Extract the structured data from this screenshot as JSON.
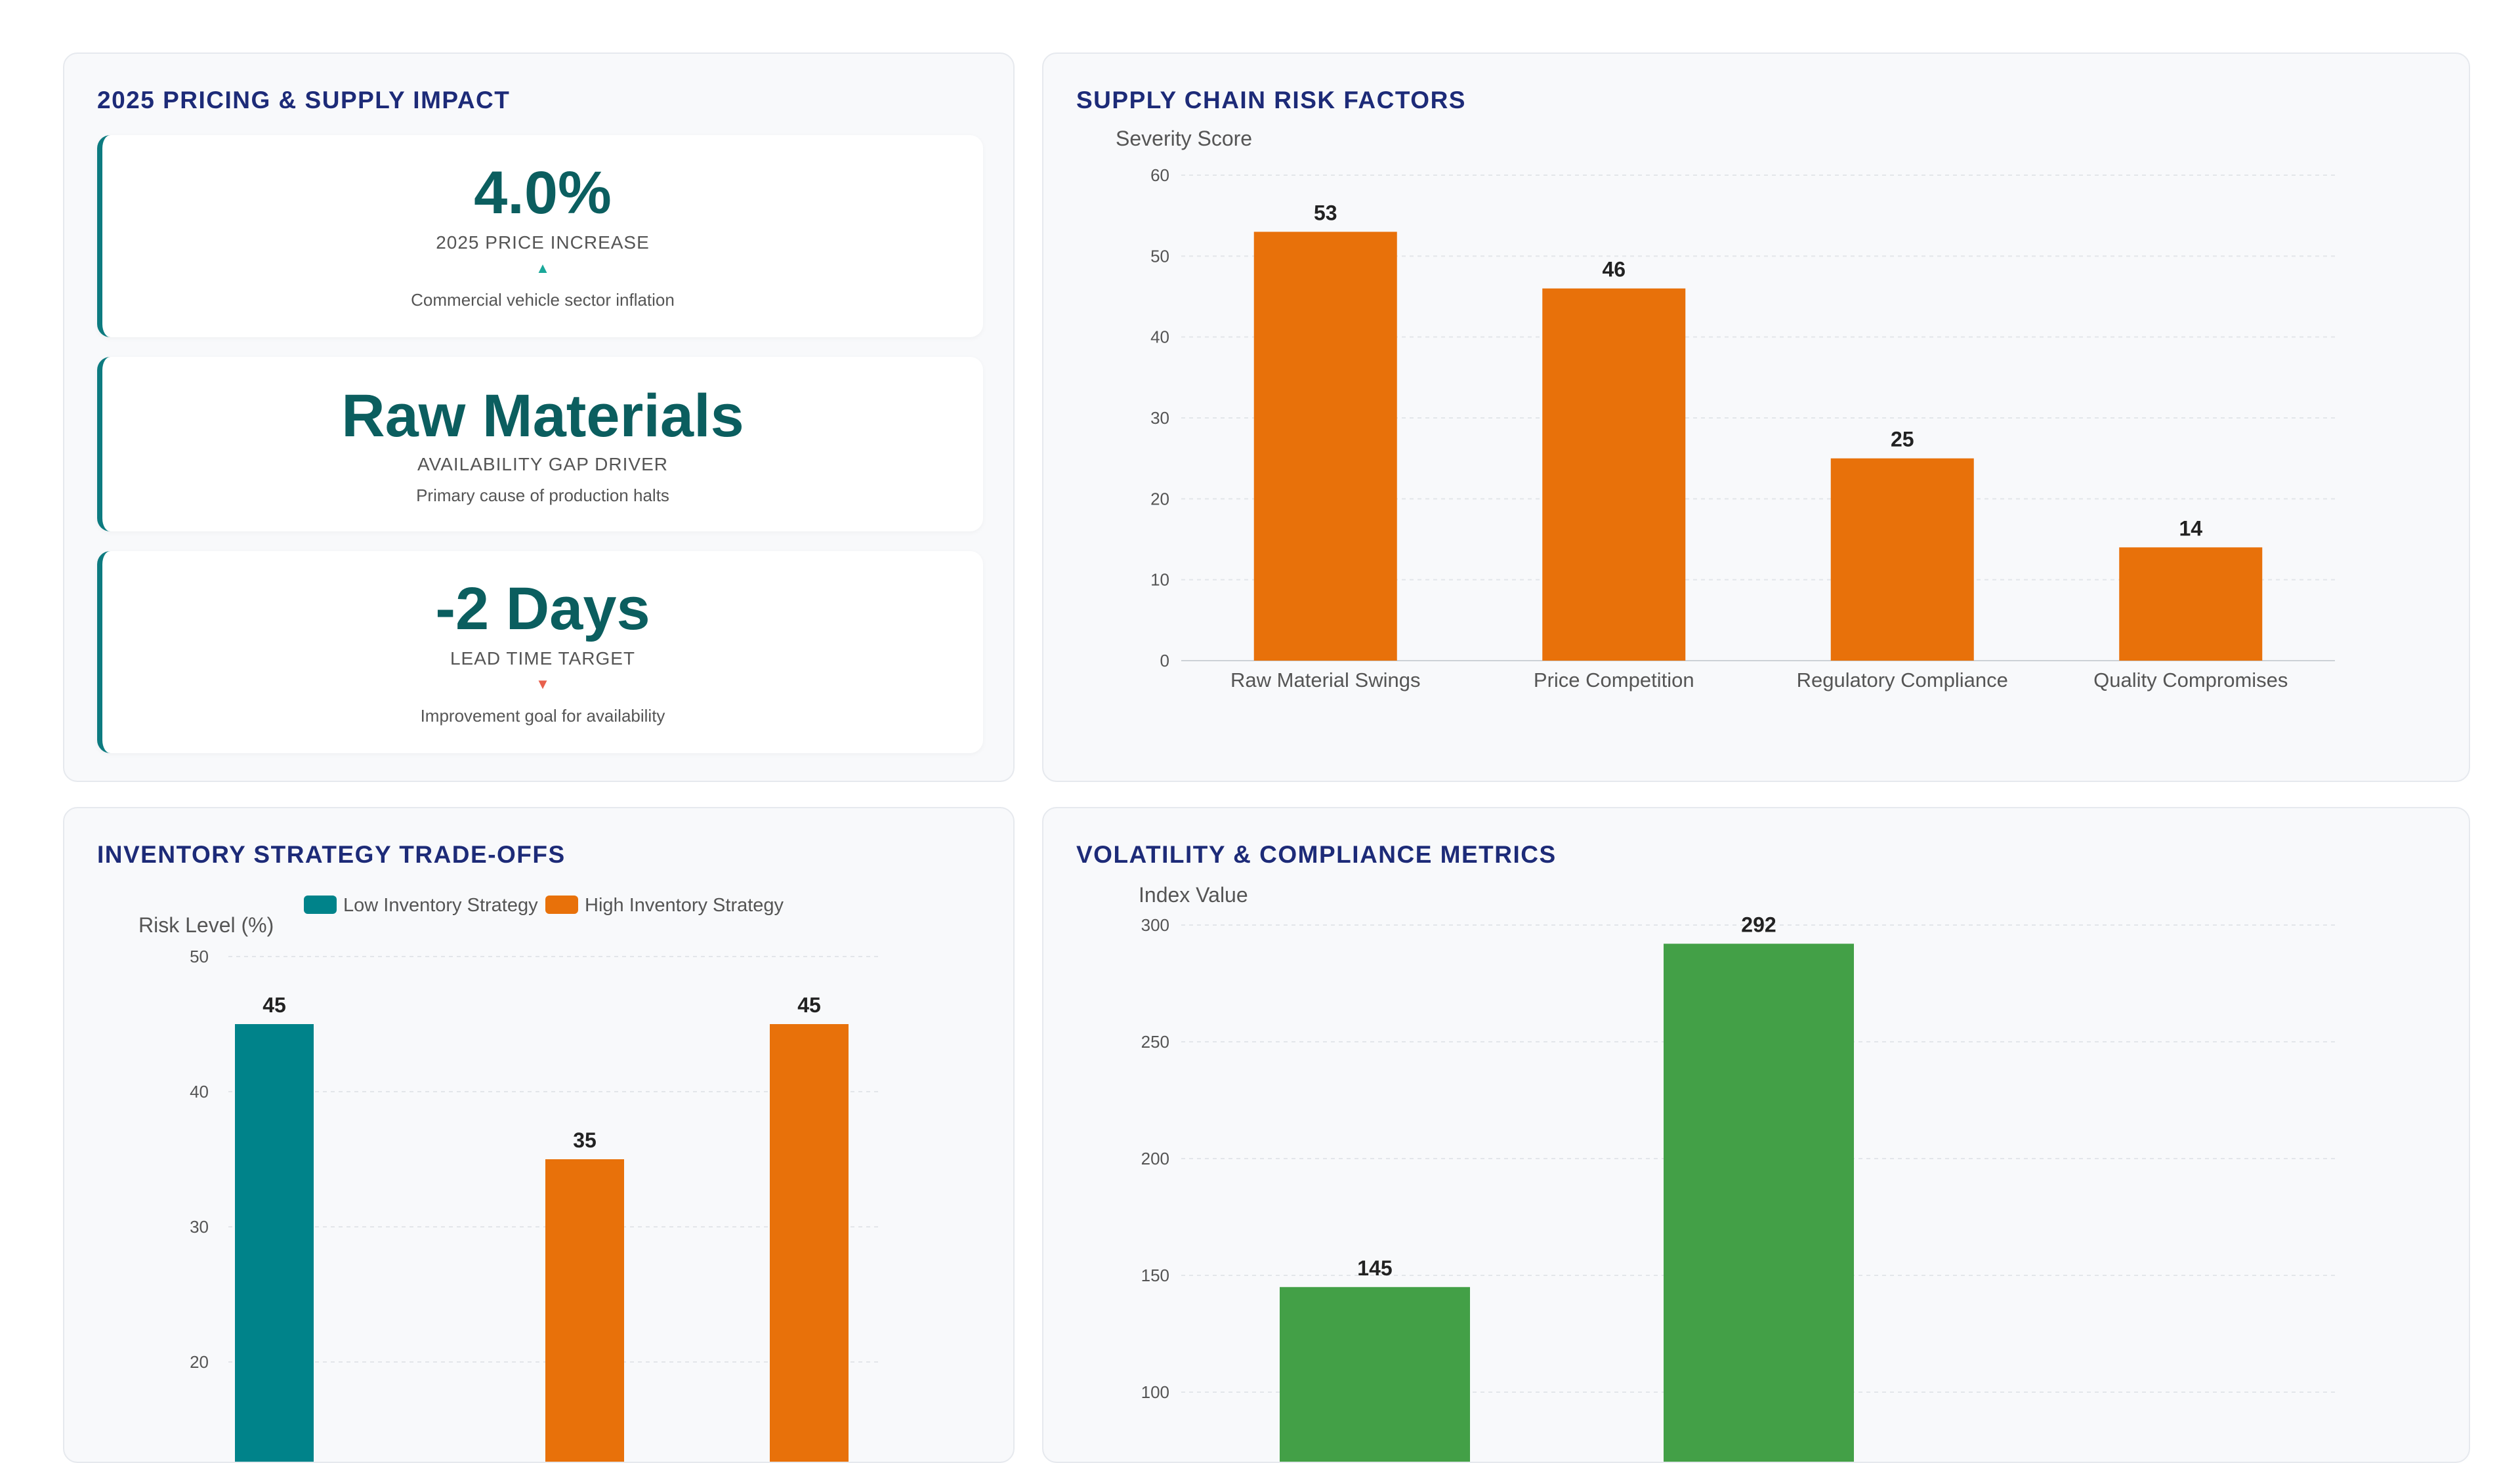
{
  "panels": {
    "pricing": {
      "title": "2025 PRICING & SUPPLY IMPACT",
      "cards": [
        {
          "value": "4.0%",
          "label": "2025 PRICE INCREASE",
          "arrow": "▲",
          "description": "Commercial vehicle sector inflation"
        },
        {
          "value": "Raw Materials",
          "label": "AVAILABILITY GAP DRIVER",
          "description": "Primary cause of production halts"
        },
        {
          "value": "-2 Days",
          "label": "LEAD TIME TARGET",
          "arrow": "▼",
          "description": "Improvement goal for availability"
        }
      ]
    },
    "risk": {
      "title": "SUPPLY CHAIN RISK FACTORS"
    },
    "inventory": {
      "title": "INVENTORY STRATEGY TRADE-OFFS"
    },
    "volatility": {
      "title": "VOLATILITY & COMPLIANCE METRICS"
    }
  },
  "colors": {
    "teal": "#00838a",
    "orange": "#e8710a",
    "green": "#43a047",
    "title": "#1d2b78",
    "up_arrow": "#1aa89a",
    "down_arrow": "#e8604c"
  },
  "chart_data": [
    {
      "id": "risk",
      "type": "bar",
      "ylabel": "Severity Score",
      "categories": [
        "Raw Material Swings",
        "Price Competition",
        "Regulatory Compliance",
        "Quality Compromises"
      ],
      "values": [
        53,
        46,
        25,
        14
      ],
      "ylim": [
        0,
        60
      ],
      "yticks": [
        0,
        10,
        20,
        30,
        40,
        50,
        60
      ],
      "grid": true
    },
    {
      "id": "inventory",
      "type": "bar",
      "ylabel": "Risk Level (%)",
      "legend_position": "top",
      "series": [
        {
          "name": "Low Inventory Strategy",
          "color": "#00838a",
          "values": [
            45,
            null,
            null
          ]
        },
        {
          "name": "High Inventory Strategy",
          "color": "#e8710a",
          "values": [
            null,
            35,
            45
          ]
        }
      ],
      "ylim_visible": [
        20,
        50
      ],
      "yticks": [
        20,
        30,
        40,
        50
      ],
      "grid": true
    },
    {
      "id": "volatility",
      "type": "bar",
      "ylabel": "Index Value",
      "values": [
        145,
        292
      ],
      "ylim_visible": [
        100,
        300
      ],
      "yticks": [
        100,
        150,
        200,
        250,
        300
      ],
      "grid": true
    }
  ]
}
